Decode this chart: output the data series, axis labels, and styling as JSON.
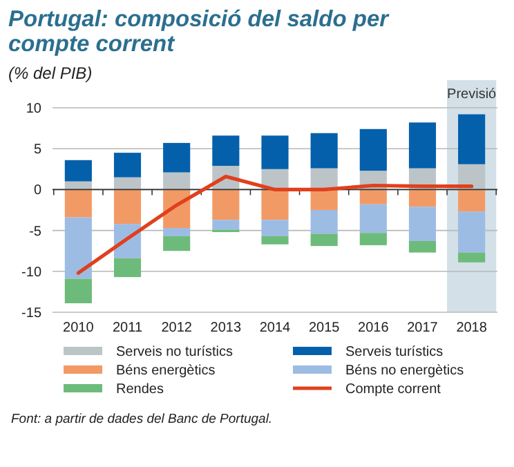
{
  "chart_data": {
    "type": "bar",
    "title": "Portugal: composició del saldo per compte corrent",
    "subtitle": "(% del PIB)",
    "categories": [
      "2010",
      "2011",
      "2012",
      "2013",
      "2014",
      "2015",
      "2016",
      "2017",
      "2018"
    ],
    "stacked": true,
    "series": [
      {
        "name": "Serveis no turístics",
        "color": "#bcc4c8",
        "values": [
          1.0,
          1.5,
          2.1,
          2.9,
          2.5,
          2.6,
          2.3,
          2.6,
          3.1
        ]
      },
      {
        "name": "Serveis turístics",
        "color": "#0560ac",
        "values": [
          2.6,
          3.0,
          3.6,
          3.7,
          4.1,
          4.3,
          5.1,
          5.6,
          6.1
        ]
      },
      {
        "name": "Béns energètics",
        "color": "#f29a66",
        "values": [
          -3.4,
          -4.2,
          -4.7,
          -3.7,
          -3.7,
          -2.5,
          -1.8,
          -2.1,
          -2.7
        ]
      },
      {
        "name": "Béns no energètics",
        "color": "#9dbce4",
        "values": [
          -7.5,
          -4.2,
          -1.0,
          -1.2,
          -2.0,
          -2.9,
          -3.5,
          -4.2,
          -5.0
        ]
      },
      {
        "name": "Rendes",
        "color": "#6dbb7a",
        "values": [
          -3.0,
          -2.3,
          -1.8,
          -0.3,
          -1.0,
          -1.5,
          -1.5,
          -1.4,
          -1.2
        ]
      },
      {
        "name": "Compte corrent",
        "type": "line",
        "color": "#e0401c",
        "values": [
          -10.2,
          -6.0,
          -1.9,
          1.6,
          0,
          0,
          0.5,
          0.4,
          0.4
        ]
      }
    ],
    "ylim": [
      -15,
      10
    ],
    "yticks": [
      -15,
      -10,
      -5,
      0,
      5,
      10
    ],
    "grid": "y",
    "legend": "bottom",
    "bands": [
      {
        "axis": "x",
        "from": "2018",
        "to": "2018",
        "label": "Previsió",
        "color": "#d3e0e8"
      }
    ],
    "annotations": [
      "Font: a partir de dades del Banc de Portugal."
    ]
  }
}
